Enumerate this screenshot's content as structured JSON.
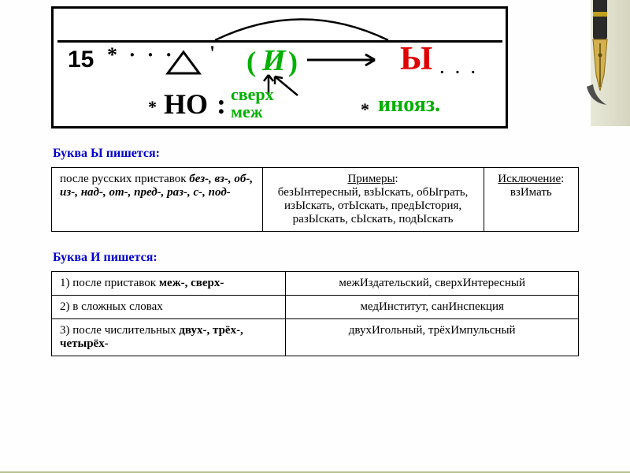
{
  "colors": {
    "green": "#00b000",
    "red": "#e00000",
    "blue_title": "#0000cc",
    "frame": "#b8c090",
    "black": "#000000",
    "bg": "#fefefe"
  },
  "diagram": {
    "number": "15",
    "dots": "* · · ·",
    "tick": "'",
    "center_letter": "И",
    "result_letter": "Ы",
    "no_word": "НО",
    "colon": ":",
    "sverh": "сверх",
    "mezh": "меж",
    "inoyaz": "инояз.",
    "star": "*",
    "dots2": "· · ·"
  },
  "section1": {
    "title": "Буква Ы пишется:",
    "rule_prefix": "после русских приставок ",
    "rule_bold": "без-, вз-, об-, из-, над-, от-, пред-, раз-, с-, под-",
    "examples_label": "Примеры",
    "examples_text": "безЫнтересный, взЫскать, обЫграть, изЫскать, отЫскать, предЫстория, разЫскать, сЫскать, подЫскать",
    "exception_label": "Исключение",
    "exception_text": "взИмать"
  },
  "section2": {
    "title": "Буква И пишется:",
    "rows": [
      {
        "rule_prefix": "1) после приставок ",
        "rule_bold": "меж-, сверх-",
        "example": "межИздательский, сверхИнтересный"
      },
      {
        "rule_prefix": "2) в сложных словах",
        "rule_bold": "",
        "example": "медИнститут, санИнспекция"
      },
      {
        "rule_prefix": "3) после числительных ",
        "rule_bold": "двух-, трёх-, четырёх-",
        "example": "двухИгольный, трёхИмпульсный"
      }
    ]
  }
}
